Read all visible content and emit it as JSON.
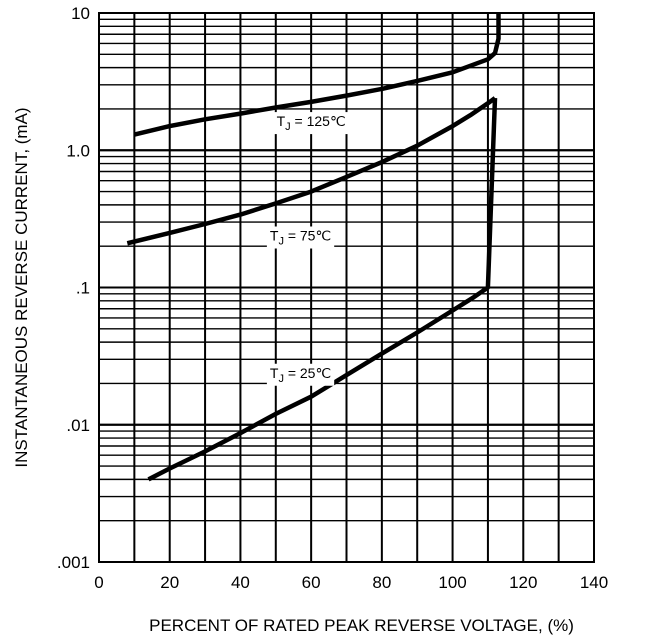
{
  "chart_data": {
    "type": "line",
    "xlabel": "PERCENT OF RATED PEAK REVERSE VOLTAGE, (%)",
    "ylabel": "INSTANTANEOUS REVERSE CURRENT, (mA)",
    "xlim": [
      0,
      140
    ],
    "ylim": [
      0.001,
      10
    ],
    "yscale": "log",
    "grid": true,
    "x_ticks": [
      "0",
      "20",
      "40",
      "60",
      "80",
      "100",
      "120",
      "140"
    ],
    "y_ticks": [
      {
        "value": 10,
        "label": "10"
      },
      {
        "value": 1,
        "label": "1.0"
      },
      {
        "value": 0.1,
        "label": ".1"
      },
      {
        "value": 0.01,
        "label": ".01"
      },
      {
        "value": 0.001,
        "label": ".001"
      }
    ],
    "series": [
      {
        "name": "T_J = 125℃",
        "label_main": "T",
        "label_sub": "J",
        "label_rest": " = 125℃",
        "label_at": [
          60,
          1.5
        ],
        "x": [
          10,
          20,
          30,
          40,
          50,
          60,
          70,
          80,
          90,
          100,
          110,
          112,
          113,
          113
        ],
        "y": [
          1.3,
          1.5,
          1.68,
          1.85,
          2.05,
          2.25,
          2.5,
          2.8,
          3.2,
          3.7,
          4.6,
          5.1,
          6.5,
          10
        ]
      },
      {
        "name": "T_J = 75℃",
        "label_main": "T",
        "label_sub": "J",
        "label_rest": " = 75℃",
        "label_at": [
          57,
          0.22
        ],
        "x": [
          8,
          20,
          30,
          40,
          50,
          60,
          70,
          80,
          90,
          100,
          105,
          110,
          112
        ],
        "y": [
          0.21,
          0.25,
          0.29,
          0.34,
          0.41,
          0.5,
          0.64,
          0.82,
          1.08,
          1.5,
          1.8,
          2.2,
          2.4
        ]
      },
      {
        "name": "T_J = 25℃",
        "label_main": "T",
        "label_sub": "J",
        "label_rest": " = 25℃",
        "label_at": [
          57,
          0.022
        ],
        "x": [
          14,
          20,
          30,
          40,
          50,
          60,
          70,
          80,
          90,
          100,
          106,
          110,
          112
        ],
        "y": [
          0.004,
          0.0048,
          0.0064,
          0.0087,
          0.012,
          0.016,
          0.023,
          0.033,
          0.047,
          0.068,
          0.085,
          0.1,
          2.4
        ]
      }
    ]
  }
}
